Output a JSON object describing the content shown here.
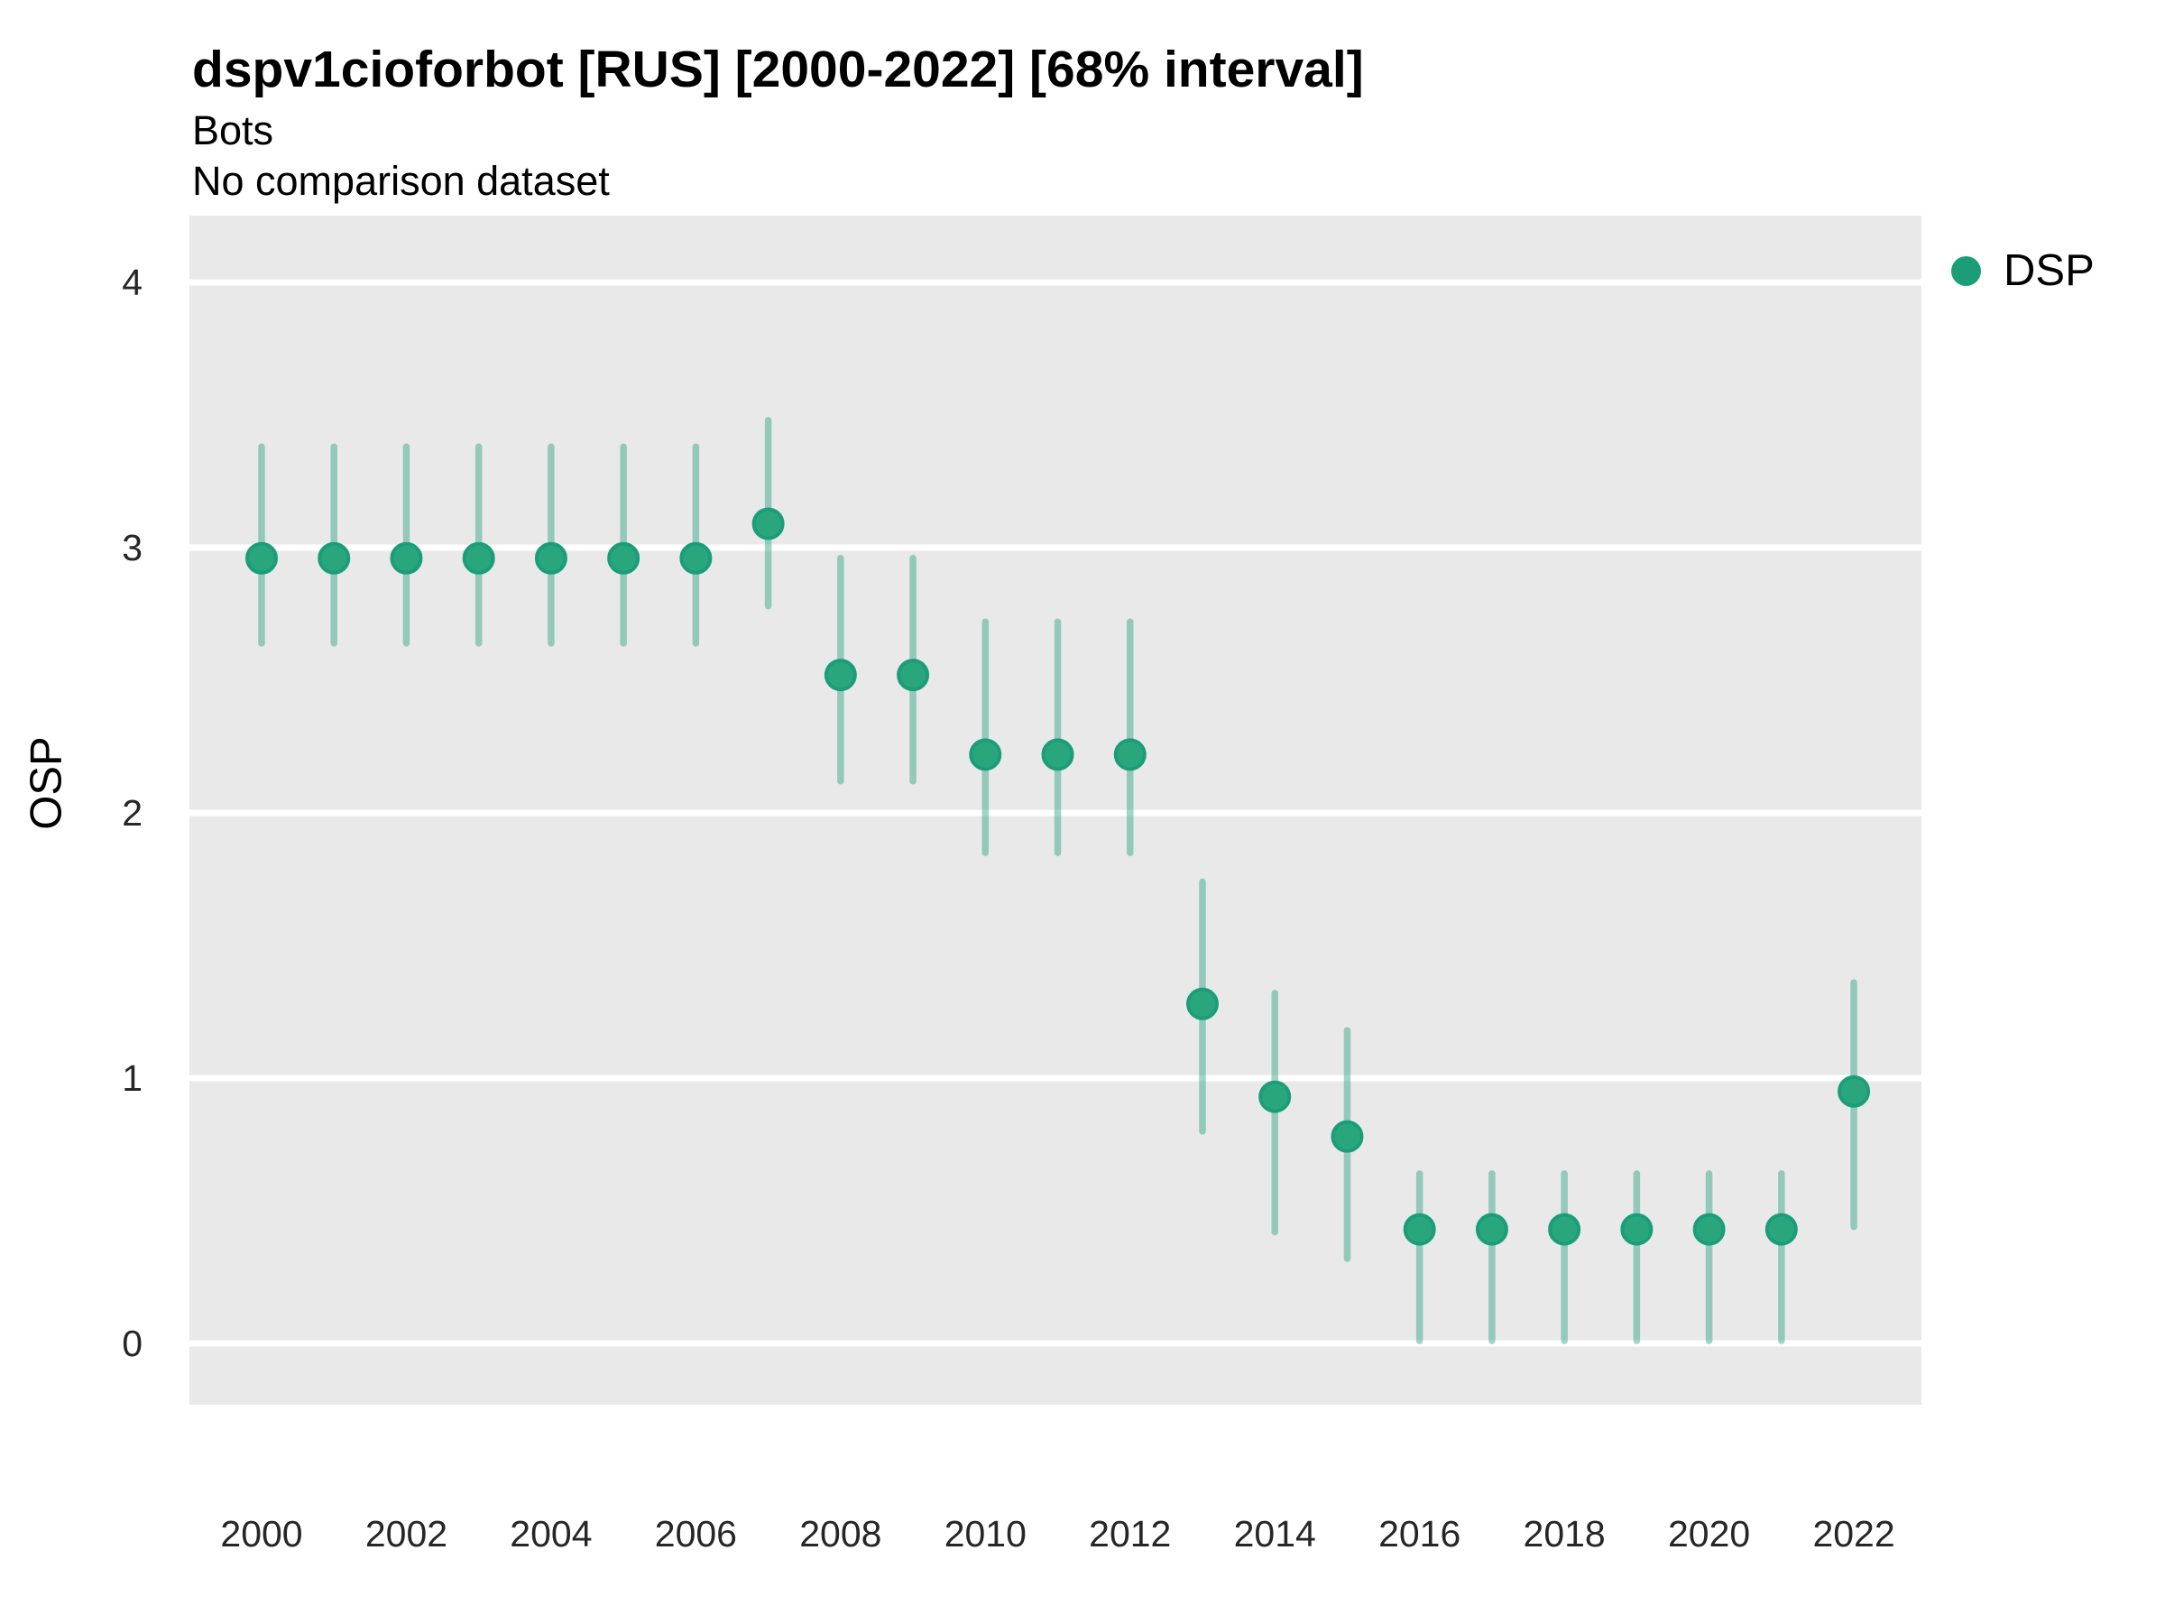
{
  "header": {
    "title": "dspv1cioforbot [RUS] [2000-2022] [68% interval]",
    "subtitle": "Bots",
    "note": "No comparison dataset"
  },
  "axes": {
    "y_title": "OSP",
    "y_ticks": [
      "0",
      "1",
      "2",
      "3",
      "4"
    ],
    "x_ticks": [
      "2000",
      "2002",
      "2004",
      "2006",
      "2008",
      "2010",
      "2012",
      "2014",
      "2016",
      "2018",
      "2020",
      "2022"
    ]
  },
  "legend": {
    "label": "DSP"
  },
  "colors": {
    "point_fill": "#2aa67d",
    "point_stroke": "#1b9e77",
    "interval_stroke": "rgba(27,158,119,0.42)",
    "panel_bg": "#e9e9e9",
    "gridline": "#ffffff",
    "tick_text": "#262626"
  },
  "chart_data": {
    "type": "pointrange",
    "title": "dspv1cioforbot [RUS] [2000-2022] [68% interval]",
    "subtitle": "Bots",
    "note": "No comparison dataset",
    "interval_level": "68%",
    "xlabel": "",
    "ylabel": "OSP",
    "xlim": [
      1999,
      2023
    ],
    "ylim": [
      -0.23,
      4.25
    ],
    "grid": "horizontal-major-only",
    "legend_position": "right",
    "x_tick_values": [
      2000,
      2002,
      2004,
      2006,
      2008,
      2010,
      2012,
      2014,
      2016,
      2018,
      2020,
      2022
    ],
    "y_tick_values": [
      0,
      1,
      2,
      3,
      4
    ],
    "series": [
      {
        "name": "DSP",
        "points": [
          {
            "year": 2000,
            "est": 2.96,
            "lo": 2.64,
            "hi": 3.38
          },
          {
            "year": 2001,
            "est": 2.96,
            "lo": 2.64,
            "hi": 3.38
          },
          {
            "year": 2002,
            "est": 2.96,
            "lo": 2.64,
            "hi": 3.38
          },
          {
            "year": 2003,
            "est": 2.96,
            "lo": 2.64,
            "hi": 3.38
          },
          {
            "year": 2004,
            "est": 2.96,
            "lo": 2.64,
            "hi": 3.38
          },
          {
            "year": 2005,
            "est": 2.96,
            "lo": 2.64,
            "hi": 3.38
          },
          {
            "year": 2006,
            "est": 2.96,
            "lo": 2.64,
            "hi": 3.38
          },
          {
            "year": 2007,
            "est": 3.09,
            "lo": 2.78,
            "hi": 3.48
          },
          {
            "year": 2008,
            "est": 2.52,
            "lo": 2.12,
            "hi": 2.96
          },
          {
            "year": 2009,
            "est": 2.52,
            "lo": 2.12,
            "hi": 2.96
          },
          {
            "year": 2010,
            "est": 2.22,
            "lo": 1.85,
            "hi": 2.72
          },
          {
            "year": 2011,
            "est": 2.22,
            "lo": 1.85,
            "hi": 2.72
          },
          {
            "year": 2012,
            "est": 2.22,
            "lo": 1.85,
            "hi": 2.72
          },
          {
            "year": 2013,
            "est": 1.28,
            "lo": 0.8,
            "hi": 1.74
          },
          {
            "year": 2014,
            "est": 0.93,
            "lo": 0.42,
            "hi": 1.32
          },
          {
            "year": 2015,
            "est": 0.78,
            "lo": 0.32,
            "hi": 1.18
          },
          {
            "year": 2016,
            "est": 0.43,
            "lo": 0.01,
            "hi": 0.64
          },
          {
            "year": 2017,
            "est": 0.43,
            "lo": 0.01,
            "hi": 0.64
          },
          {
            "year": 2018,
            "est": 0.43,
            "lo": 0.01,
            "hi": 0.64
          },
          {
            "year": 2019,
            "est": 0.43,
            "lo": 0.01,
            "hi": 0.64
          },
          {
            "year": 2020,
            "est": 0.43,
            "lo": 0.01,
            "hi": 0.64
          },
          {
            "year": 2021,
            "est": 0.43,
            "lo": 0.01,
            "hi": 0.64
          },
          {
            "year": 2022,
            "est": 0.95,
            "lo": 0.44,
            "hi": 1.36
          }
        ]
      }
    ]
  }
}
